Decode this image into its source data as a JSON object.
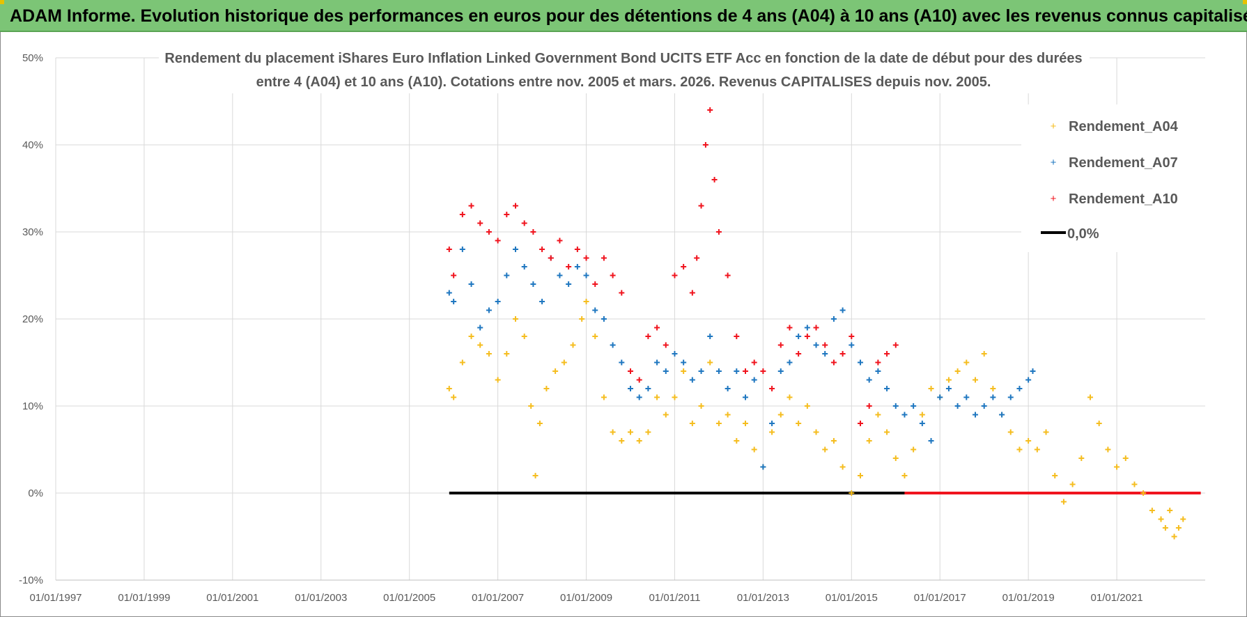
{
  "banner": {
    "title": "ADAM Informe. Evolution historique des performances en euros pour des détentions de 4 ans (A04) à 10 ans (A10) avec les revenus connus capitalisés"
  },
  "colors": {
    "banner_bg": "#7cc576",
    "series_a04": "#f5bd1f",
    "series_a07": "#1f77c0",
    "series_a10": "#f0141e",
    "zero_line": "#000000",
    "grid": "#d9d9d9"
  },
  "chart_data": {
    "type": "scatter",
    "title_line1": "Rendement du placement iShares Euro Inflation Linked Government Bond UCITS ETF Acc en fonction de la date de début pour des durées",
    "title_line2": "entre 4 (A04) et 10 ans (A10). Cotations entre nov. 2005 et mars. 2026. Revenus CAPITALISES depuis nov. 2005.",
    "x_unit": "year",
    "xlim": [
      1997.0,
      2023.0
    ],
    "ylim": [
      -10,
      50
    ],
    "y_ticks": [
      -10,
      0,
      10,
      20,
      30,
      40,
      50
    ],
    "y_tick_labels": [
      "-10%",
      "0%",
      "10%",
      "20%",
      "30%",
      "40%",
      "50%"
    ],
    "x_ticks": [
      1997,
      1999,
      2001,
      2003,
      2005,
      2007,
      2009,
      2011,
      2013,
      2015,
      2017,
      2019,
      2021
    ],
    "x_tick_labels": [
      "01/01/1997",
      "01/01/1999",
      "01/01/2001",
      "01/01/2003",
      "01/01/2005",
      "01/01/2007",
      "01/01/2009",
      "01/01/2011",
      "01/01/2013",
      "01/01/2015",
      "01/01/2017",
      "01/01/2019",
      "01/01/2021"
    ],
    "legend_position": "top-right",
    "series": [
      {
        "name": "Rendement_A04",
        "marker": "plus",
        "x": [
          2005.9,
          2006.0,
          2006.2,
          2006.4,
          2006.6,
          2006.8,
          2007.0,
          2007.2,
          2007.4,
          2007.6,
          2007.75,
          2007.85,
          2007.95,
          2008.1,
          2008.3,
          2008.5,
          2008.7,
          2008.9,
          2009.0,
          2009.2,
          2009.4,
          2009.6,
          2009.8,
          2010.0,
          2010.2,
          2010.4,
          2010.6,
          2010.8,
          2011.0,
          2011.2,
          2011.4,
          2011.6,
          2011.8,
          2012.0,
          2012.2,
          2012.4,
          2012.6,
          2012.8,
          2013.0,
          2013.2,
          2013.4,
          2013.6,
          2013.8,
          2014.0,
          2014.2,
          2014.4,
          2014.6,
          2014.8,
          2015.0,
          2015.2,
          2015.4,
          2015.6,
          2015.8,
          2016.0,
          2016.2,
          2016.4,
          2016.6,
          2016.8,
          2017.0,
          2017.2,
          2017.4,
          2017.6,
          2017.8,
          2018.0,
          2018.2,
          2018.4,
          2018.6,
          2018.8,
          2019.0,
          2019.2,
          2019.4,
          2019.6,
          2019.8,
          2020.0,
          2020.2,
          2020.4,
          2020.6,
          2020.8,
          2021.0,
          2021.2,
          2021.4,
          2021.6,
          2021.8,
          2022.0,
          2022.1,
          2022.2,
          2022.3,
          2022.4,
          2022.5
        ],
        "y": [
          12,
          11,
          15,
          18,
          17,
          16,
          13,
          16,
          20,
          18,
          10,
          2,
          8,
          12,
          14,
          15,
          17,
          20,
          22,
          18,
          11,
          7,
          6,
          7,
          6,
          7,
          11,
          9,
          11,
          14,
          8,
          10,
          15,
          8,
          9,
          6,
          8,
          5,
          3,
          7,
          9,
          11,
          8,
          10,
          7,
          5,
          6,
          3,
          0,
          2,
          6,
          9,
          7,
          4,
          2,
          5,
          9,
          12,
          11,
          13,
          14,
          15,
          13,
          16,
          12,
          9,
          7,
          5,
          6,
          5,
          7,
          2,
          -1,
          1,
          4,
          11,
          8,
          5,
          3,
          4,
          1,
          0,
          -2,
          -3,
          -4,
          -2,
          -5,
          -4,
          -3
        ]
      },
      {
        "name": "Rendement_A07",
        "marker": "plus",
        "x": [
          2005.9,
          2006.0,
          2006.2,
          2006.4,
          2006.6,
          2006.8,
          2007.0,
          2007.2,
          2007.4,
          2007.6,
          2007.8,
          2008.0,
          2008.2,
          2008.4,
          2008.6,
          2008.8,
          2009.0,
          2009.2,
          2009.4,
          2009.6,
          2009.8,
          2010.0,
          2010.2,
          2010.4,
          2010.6,
          2010.8,
          2011.0,
          2011.2,
          2011.4,
          2011.6,
          2011.8,
          2012.0,
          2012.2,
          2012.4,
          2012.6,
          2012.8,
          2013.0,
          2013.2,
          2013.4,
          2013.6,
          2013.8,
          2014.0,
          2014.2,
          2014.4,
          2014.6,
          2014.8,
          2015.0,
          2015.2,
          2015.4,
          2015.6,
          2015.8,
          2016.0,
          2016.2,
          2016.4,
          2016.6,
          2016.8,
          2017.0,
          2017.2,
          2017.4,
          2017.6,
          2017.8,
          2018.0,
          2018.2,
          2018.4,
          2018.6,
          2018.8,
          2019.0,
          2019.1
        ],
        "y": [
          23,
          22,
          28,
          24,
          19,
          21,
          22,
          25,
          28,
          26,
          24,
          22,
          27,
          25,
          24,
          26,
          25,
          21,
          20,
          17,
          15,
          12,
          11,
          12,
          15,
          14,
          16,
          15,
          13,
          14,
          18,
          14,
          12,
          14,
          11,
          13,
          3,
          8,
          14,
          15,
          18,
          19,
          17,
          16,
          20,
          21,
          17,
          15,
          13,
          14,
          12,
          10,
          9,
          10,
          8,
          6,
          11,
          12,
          10,
          11,
          9,
          10,
          11,
          9,
          11,
          12,
          13,
          14
        ]
      },
      {
        "name": "Rendement_A10",
        "marker": "plus",
        "x": [
          2005.9,
          2006.0,
          2006.2,
          2006.4,
          2006.6,
          2006.8,
          2007.0,
          2007.2,
          2007.4,
          2007.6,
          2007.8,
          2008.0,
          2008.2,
          2008.4,
          2008.6,
          2008.8,
          2009.0,
          2009.2,
          2009.4,
          2009.6,
          2009.8,
          2010.0,
          2010.2,
          2010.4,
          2010.6,
          2010.8,
          2011.0,
          2011.2,
          2011.4,
          2011.5,
          2011.6,
          2011.7,
          2011.8,
          2011.9,
          2012.0,
          2012.2,
          2012.4,
          2012.6,
          2012.8,
          2013.0,
          2013.2,
          2013.4,
          2013.6,
          2013.8,
          2014.0,
          2014.2,
          2014.4,
          2014.6,
          2014.8,
          2015.0,
          2015.2,
          2015.4,
          2015.6,
          2015.8,
          2016.0
        ],
        "y": [
          28,
          25,
          32,
          33,
          31,
          30,
          29,
          32,
          33,
          31,
          30,
          28,
          27,
          29,
          26,
          28,
          27,
          24,
          27,
          25,
          23,
          14,
          13,
          18,
          19,
          17,
          25,
          26,
          23,
          27,
          33,
          40,
          44,
          36,
          30,
          25,
          18,
          14,
          15,
          14,
          12,
          17,
          19,
          16,
          18,
          19,
          17,
          15,
          16,
          18,
          8,
          10,
          15,
          16,
          17
        ]
      },
      {
        "name": "0,0%",
        "marker": "line",
        "segments": [
          {
            "x": [
              2005.9,
              2016.2
            ],
            "y": [
              0,
              0
            ],
            "color": "#000000"
          },
          {
            "x": [
              2016.2,
              2022.9
            ],
            "y": [
              0,
              0
            ],
            "color": "#f0141e"
          }
        ]
      }
    ]
  }
}
